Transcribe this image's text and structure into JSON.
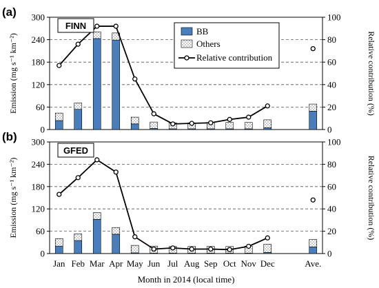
{
  "figure": {
    "xlabel": "Month in 2014 (local time)"
  },
  "chart_data": [
    {
      "type": "bar",
      "panel_label": "(a)",
      "inventory_label": "FINN",
      "categories": [
        "Jan",
        "Feb",
        "Mar",
        "Apr",
        "May",
        "Jun",
        "Jul",
        "Aug",
        "Sep",
        "Oct",
        "Nov",
        "Dec",
        "Ave."
      ],
      "series": [
        {
          "name": "BB",
          "kind": "bar-stacked",
          "color": "#4a7ebb",
          "values": [
            24,
            54,
            243,
            239,
            15,
            3,
            2,
            2,
            2,
            2,
            2,
            5,
            49
          ]
        },
        {
          "name": "Others",
          "kind": "bar-stacked",
          "color": "#ffffff",
          "pattern": "dotted",
          "values": [
            20,
            17,
            18,
            19,
            18,
            17,
            16,
            16,
            17,
            17,
            17,
            21,
            19
          ]
        },
        {
          "name": "Relative contribution",
          "kind": "line",
          "axis": "right",
          "values": [
            57,
            76,
            92,
            92,
            45,
            14,
            5,
            5.5,
            6,
            9,
            11,
            21,
            72
          ]
        }
      ],
      "ylabel": "Emission (mg s⁻¹ km⁻²)",
      "ylabel_right": "Relative contribution (%)",
      "ylim": [
        0,
        300
      ],
      "yticks": [
        0,
        60,
        120,
        180,
        240,
        300
      ],
      "ylim_right": [
        0,
        100
      ],
      "yticks_right": [
        0,
        20,
        40,
        60,
        80,
        100
      ],
      "grid": "horizontal dashed",
      "legend": "top-center"
    },
    {
      "type": "bar",
      "panel_label": "(b)",
      "inventory_label": "GFED",
      "categories": [
        "Jan",
        "Feb",
        "Mar",
        "Apr",
        "May",
        "Jun",
        "Jul",
        "Aug",
        "Sep",
        "Oct",
        "Nov",
        "Dec",
        "Ave."
      ],
      "series": [
        {
          "name": "BB",
          "kind": "bar-stacked",
          "color": "#4a7ebb",
          "values": [
            20,
            35,
            92,
            52,
            2,
            1,
            1,
            1,
            1,
            1,
            1,
            3,
            18
          ]
        },
        {
          "name": "Others",
          "kind": "bar-stacked",
          "color": "#ffffff",
          "pattern": "dotted",
          "values": [
            20,
            18,
            18,
            18,
            20,
            19,
            18,
            18,
            18,
            18,
            19,
            22,
            20
          ]
        },
        {
          "name": "Relative contribution",
          "kind": "line",
          "axis": "right",
          "values": [
            53,
            68,
            84,
            73,
            15,
            4,
            5,
            4,
            4,
            3.5,
            6.5,
            14,
            48
          ]
        }
      ],
      "ylabel": "Emission (mg s⁻¹ km⁻²)",
      "ylabel_right": "Relative contribution (%)",
      "ylim": [
        0,
        300
      ],
      "yticks": [
        0,
        60,
        120,
        180,
        240,
        300
      ],
      "ylim_right": [
        0,
        100
      ],
      "yticks_right": [
        0,
        20,
        40,
        60,
        80,
        100
      ],
      "grid": "horizontal dashed"
    }
  ]
}
